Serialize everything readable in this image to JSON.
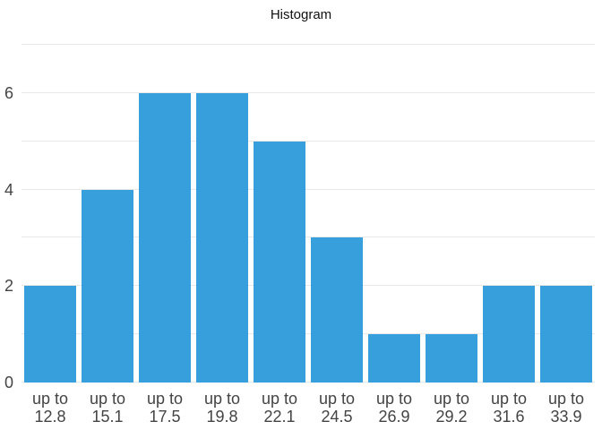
{
  "chart_data": {
    "type": "bar",
    "title": "Histogram",
    "categories": [
      "up to 12.8",
      "up to 15.1",
      "up to 17.5",
      "up to 19.8",
      "up to 22.1",
      "up to 24.5",
      "up to 26.9",
      "up to 29.2",
      "up to 31.6",
      "up to 33.9"
    ],
    "values": [
      2,
      4,
      6,
      6,
      5,
      3,
      1,
      1,
      2,
      2
    ],
    "xlabel": "",
    "ylabel": "",
    "ylim": [
      0,
      7
    ],
    "y_tick_labels": [
      0,
      2,
      4,
      6
    ],
    "grid": "horizontal, every 1 unit",
    "legend": "none",
    "colors": {
      "bar": "#37A0DC",
      "gridline": "#E8E8E8",
      "tick_text": "#444444",
      "title_text": "#111111",
      "background": "#FFFFFF"
    }
  }
}
